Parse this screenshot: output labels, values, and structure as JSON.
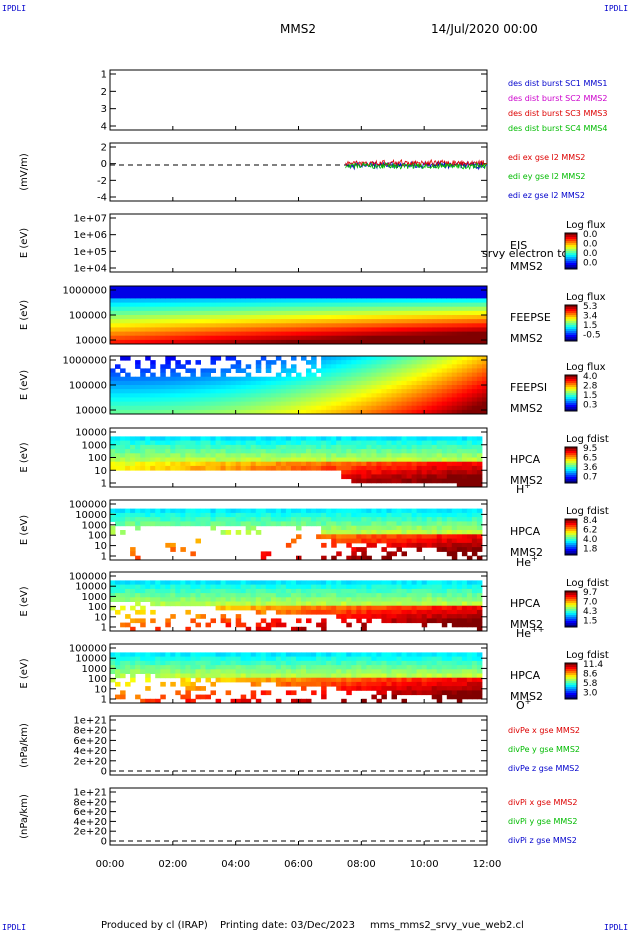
{
  "corners": {
    "tl": "IPDLI",
    "tr": "IPDLI",
    "bl": "IPDLI",
    "br": "IPDLI"
  },
  "header": {
    "spacecraft": "MMS2",
    "date": "14/Jul/2020 00:00"
  },
  "footer": {
    "produced": "Produced by cl (IRAP)",
    "printing": "Printing date: 03/Dec/2023",
    "script": "mms_mms2_srvy_vue_web2.cl"
  },
  "colors": {
    "blue": "#0000cc",
    "magenta": "#cc00cc",
    "red": "#dd0000",
    "green": "#00bb00"
  },
  "chart_data": [
    {
      "id": "sc",
      "type": "line",
      "title": "",
      "ylabel": "",
      "ylim": [
        0.7,
        4.5
      ],
      "yticks": [
        "1",
        "2",
        "3",
        "4"
      ],
      "legend": [
        {
          "name": "des dist burst SC1 MMS1",
          "color": "#0000cc"
        },
        {
          "name": "des dist burst SC2 MMS2",
          "color": "#cc00cc"
        },
        {
          "name": "des dist burst SC3 MMS3",
          "color": "#dd0000"
        },
        {
          "name": "des dist burst SC4 MMS4",
          "color": "#00bb00"
        }
      ],
      "series": []
    },
    {
      "id": "edi",
      "type": "line",
      "ylabel": "(mV/m)",
      "ylim": [
        -5,
        3
      ],
      "yticks": [
        "2",
        "0",
        "-2",
        "-4"
      ],
      "data_range_hours": [
        7.5,
        12.0
      ],
      "legend": [
        {
          "name": "edi ex gse l2 MMS2",
          "color": "#dd0000"
        },
        {
          "name": "edi ey gse l2 MMS2",
          "color": "#00bb00"
        },
        {
          "name": "edi ez gse l2 MMS2",
          "color": "#0000cc"
        }
      ]
    },
    {
      "id": "eis",
      "type": "heatmap",
      "ylabel": "E (eV)",
      "ylog": true,
      "yticks": [
        "1e+07",
        "1e+06",
        "1e+05",
        "1e+04"
      ],
      "labels": [
        "EIS",
        "MMS2"
      ],
      "overlay_text": "srvy electron to",
      "colorbar": {
        "title": "Log flux",
        "ticks": [
          "0.0",
          "0.0",
          "0.0",
          "0.0"
        ]
      }
    },
    {
      "id": "feepse",
      "type": "heatmap",
      "ylabel": "E (eV)",
      "ylog": true,
      "yticks": [
        "1000000",
        "100000",
        "10000"
      ],
      "labels": [
        "FEEPSE",
        "MMS2"
      ],
      "colorbar": {
        "title": "Log flux",
        "ticks": [
          "5.3",
          "3.4",
          "1.5",
          "-0.5"
        ]
      }
    },
    {
      "id": "feepsi",
      "type": "heatmap",
      "ylabel": "E (eV)",
      "ylog": true,
      "yticks": [
        "1000000",
        "100000",
        "10000"
      ],
      "labels": [
        "FEEPSI",
        "MMS2"
      ],
      "colorbar": {
        "title": "Log flux",
        "ticks": [
          "4.0",
          "2.8",
          "1.5",
          "0.3"
        ]
      }
    },
    {
      "id": "hpca_h",
      "type": "heatmap",
      "ylabel": "E (eV)",
      "ylog": true,
      "yticks": [
        "10000",
        "1000",
        "100",
        "10",
        "1"
      ],
      "labels": [
        "HPCA",
        "MMS2"
      ],
      "species": "H",
      "species_sup": "+",
      "colorbar": {
        "title": "Log fdist",
        "ticks": [
          "9.5",
          "6.5",
          "3.6",
          "0.7"
        ]
      }
    },
    {
      "id": "hpca_he",
      "type": "heatmap",
      "ylabel": "E (eV)",
      "ylog": true,
      "yticks": [
        "100000",
        "10000",
        "1000",
        "100",
        "10",
        "1"
      ],
      "labels": [
        "HPCA",
        "MMS2"
      ],
      "species": "He",
      "species_sup": "+",
      "colorbar": {
        "title": "Log fdist",
        "ticks": [
          "8.4",
          "6.2",
          "4.0",
          "1.8"
        ]
      }
    },
    {
      "id": "hpca_hepp",
      "type": "heatmap",
      "ylabel": "E (eV)",
      "ylog": true,
      "yticks": [
        "100000",
        "10000",
        "1000",
        "100",
        "10",
        "1"
      ],
      "labels": [
        "HPCA",
        "MMS2"
      ],
      "species": "He",
      "species_sup": "++",
      "colorbar": {
        "title": "Log fdist",
        "ticks": [
          "9.7",
          "7.0",
          "4.3",
          "1.5"
        ]
      }
    },
    {
      "id": "hpca_o",
      "type": "heatmap",
      "ylabel": "E (eV)",
      "ylog": true,
      "yticks": [
        "100000",
        "10000",
        "1000",
        "100",
        "10",
        "1"
      ],
      "labels": [
        "HPCA",
        "MMS2"
      ],
      "species": "O",
      "species_sup": "+",
      "colorbar": {
        "title": "Log fdist",
        "ticks": [
          "11.4",
          "8.6",
          "5.8",
          "3.0"
        ]
      }
    },
    {
      "id": "divpe",
      "type": "line",
      "ylabel": "(nPa/km)",
      "ylim": [
        -0.1,
        1.1
      ],
      "yticks": [
        "1e+21",
        "8e+20",
        "6e+20",
        "4e+20",
        "2e+20",
        "0"
      ],
      "legend": [
        {
          "name": "divPe x gse MMS2",
          "color": "#dd0000"
        },
        {
          "name": "divPe y gse MMS2",
          "color": "#00bb00"
        },
        {
          "name": "divPe z gse MMS2",
          "color": "#0000cc"
        }
      ]
    },
    {
      "id": "divpi",
      "type": "line",
      "ylabel": "(nPa/km)",
      "ylim": [
        -0.1,
        1.1
      ],
      "yticks": [
        "1e+21",
        "8e+20",
        "6e+20",
        "4e+20",
        "2e+20",
        "0"
      ],
      "legend": [
        {
          "name": "divPi x gse MMS2",
          "color": "#dd0000"
        },
        {
          "name": "divPi y gse MMS2",
          "color": "#00bb00"
        },
        {
          "name": "divPi z gse MMS2",
          "color": "#0000cc"
        }
      ]
    }
  ],
  "xaxis": {
    "ticks": [
      "00:00",
      "02:00",
      "04:00",
      "06:00",
      "08:00",
      "10:00",
      "12:00"
    ],
    "xlim_hours": [
      0,
      12
    ]
  }
}
